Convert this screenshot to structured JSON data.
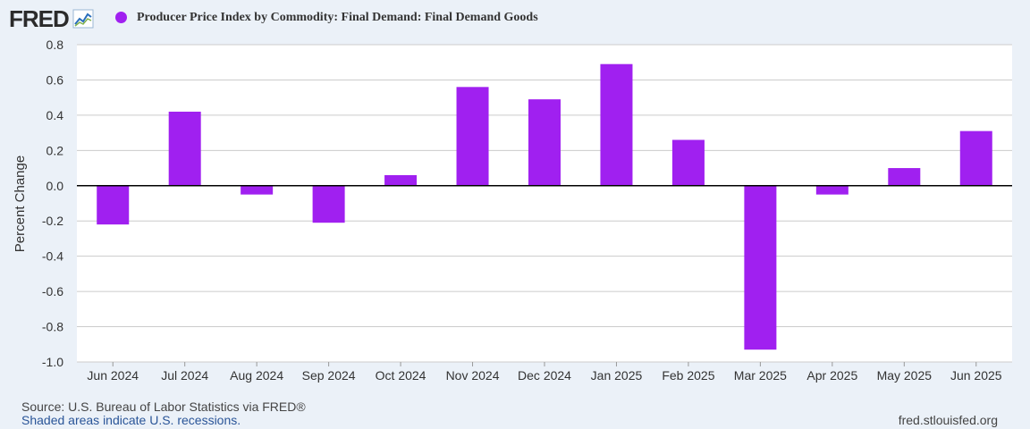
{
  "header": {
    "logo_text": "FRED",
    "logo_icon": "line-chart-icon"
  },
  "colors": {
    "bar": "#a020f0",
    "plot_bg": "#ffffff",
    "grid": "#cccccc",
    "zero_line": "#000000",
    "page_bg": "#ebf1f8"
  },
  "chart_data": {
    "type": "bar",
    "title": "Producer Price Index by Commodity: Final Demand: Final Demand Goods",
    "series_name": "Producer Price Index by Commodity: Final Demand: Final Demand Goods",
    "xlabel": "",
    "ylabel": "Percent Change",
    "ylim": [
      -1.0,
      0.8
    ],
    "yticks": [
      -1.0,
      -0.8,
      -0.6,
      -0.4,
      -0.2,
      0.0,
      0.2,
      0.4,
      0.6,
      0.8
    ],
    "ytick_labels": [
      "-1.0",
      "-0.8",
      "-0.6",
      "-0.4",
      "-0.2",
      "0.0",
      "0.2",
      "0.4",
      "0.6",
      "0.8"
    ],
    "grid": true,
    "categories": [
      "Jun 2024",
      "Jul 2024",
      "Aug 2024",
      "Sep 2024",
      "Oct 2024",
      "Nov 2024",
      "Dec 2024",
      "Jan 2025",
      "Feb 2025",
      "Mar 2025",
      "Apr 2025",
      "May 2025",
      "Jun 2025"
    ],
    "values": [
      -0.22,
      0.42,
      -0.05,
      -0.21,
      0.06,
      0.56,
      0.49,
      0.69,
      0.26,
      -0.93,
      -0.05,
      0.1,
      0.31
    ]
  },
  "footer": {
    "source": "Source: U.S. Bureau of Labor Statistics via FRED®",
    "recession_note": "Shaded areas indicate U.S. recessions.",
    "url": "fred.stlouisfed.org"
  }
}
